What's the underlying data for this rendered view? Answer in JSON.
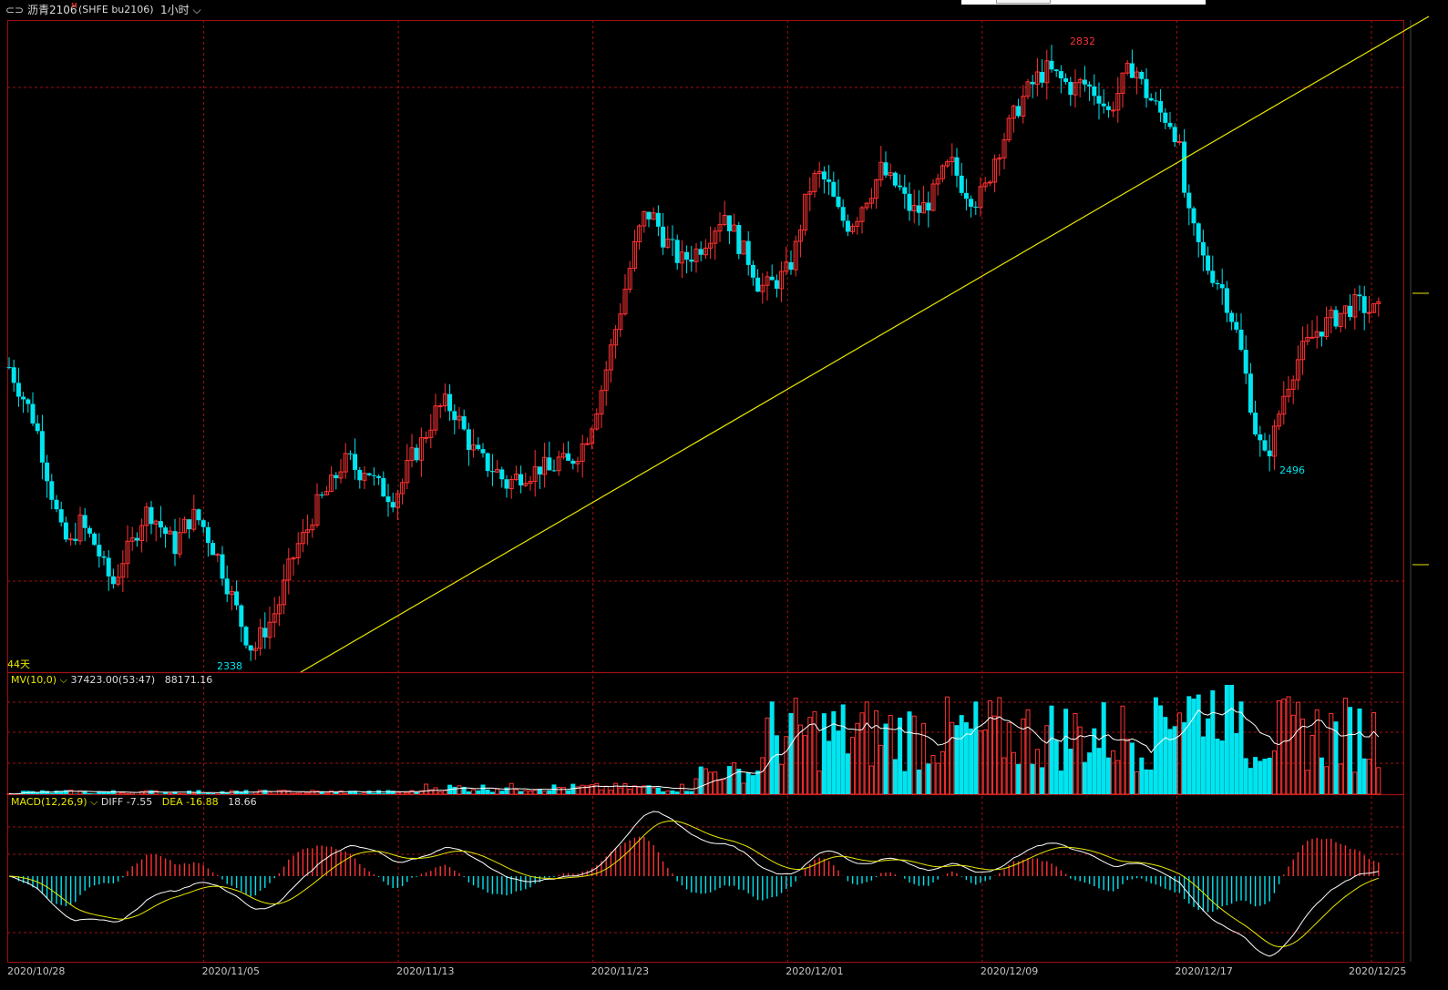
{
  "header": {
    "icon": "window-toggle-icon",
    "symbol_name": "沥青2106",
    "symbol_flag": "M",
    "symbol_code": "(SHFE bu2106)",
    "period": "1小时",
    "period_icon": "chevron-down-icon"
  },
  "main_panel": {
    "days_label": "44天",
    "high_label": "2832",
    "low_label": "2496",
    "early_low_label": "2338"
  },
  "volume_panel": {
    "indicator": "MV(10,0)",
    "value1": "37423.00(53:47)",
    "value2": "88171.16"
  },
  "macd_panel": {
    "indicator": "MACD(12,26,9)",
    "diff": "DIFF -7.55",
    "dea": "DEA -16.88",
    "macd": "18.66"
  },
  "x_axis_dates": [
    "2020/10/28",
    "2020/11/05",
    "2020/11/13",
    "2020/11/23",
    "2020/12/01",
    "2020/12/09",
    "2020/12/17",
    "2020/12/25"
  ],
  "colors": {
    "up": "#ff3232",
    "down": "#00e5f0",
    "trendline": "#e8e800",
    "grid": "#a01010",
    "ma_line": "#ffffff",
    "dea_line": "#e8e800",
    "label_yellow": "#e8e800",
    "label_white": "#dcdcdc"
  },
  "chart_data": [
    {
      "type": "candlestick",
      "title": "沥青2106 (SHFE bu2106) 1小时",
      "x_dates": [
        "2020/10/28",
        "2020/11/05",
        "2020/11/13",
        "2020/11/23",
        "2020/12/01",
        "2020/12/09",
        "2020/12/17",
        "2020/12/25"
      ],
      "annotated_points": [
        {
          "label": "2338",
          "value": 2338
        },
        {
          "label": "2832",
          "value": 2832
        },
        {
          "label": "2496",
          "value": 2496
        }
      ],
      "trendline": "rising from 11/13 low towards top-right",
      "price_path": [
        2575,
        2560,
        2545,
        2530,
        2500,
        2470,
        2440,
        2430,
        2450,
        2440,
        2430,
        2410,
        2400,
        2420,
        2430,
        2450,
        2460,
        2450,
        2440,
        2430,
        2445,
        2455,
        2450,
        2435,
        2420,
        2400,
        2380,
        2360,
        2345,
        2360,
        2370,
        2385,
        2410,
        2430,
        2440,
        2460,
        2470,
        2480,
        2495,
        2500,
        2490,
        2495,
        2480,
        2475,
        2470,
        2480,
        2500,
        2510,
        2525,
        2540,
        2545,
        2540,
        2525,
        2510,
        2500,
        2495,
        2490,
        2480,
        2485,
        2490,
        2490,
        2495,
        2490,
        2500,
        2495,
        2505,
        2515,
        2535,
        2560,
        2590,
        2620,
        2650,
        2680,
        2700,
        2695,
        2680,
        2670,
        2660,
        2665,
        2670,
        2680,
        2690,
        2700,
        2685,
        2670,
        2660,
        2640,
        2640,
        2645,
        2650,
        2665,
        2700,
        2725,
        2730,
        2720,
        2700,
        2690,
        2695,
        2710,
        2720,
        2735,
        2725,
        2720,
        2705,
        2700,
        2705,
        2715,
        2730,
        2740,
        2725,
        2715,
        2710,
        2720,
        2745,
        2760,
        2775,
        2790,
        2800,
        2810,
        2815,
        2810,
        2805,
        2800,
        2805,
        2800,
        2795,
        2780,
        2795,
        2810,
        2820,
        2800,
        2790,
        2780,
        2775,
        2760,
        2700,
        2680,
        2660,
        2650,
        2640,
        2620,
        2595,
        2560,
        2520,
        2500,
        2520,
        2550,
        2570,
        2585,
        2595,
        2605,
        2610,
        2615,
        2620,
        2625,
        2625,
        2620,
        2620
      ]
    },
    {
      "type": "bar",
      "title": "MV(10,0)",
      "series": [
        {
          "name": "MV(10,0)",
          "values": [
            37423.0,
            88171.16
          ]
        }
      ]
    },
    {
      "type": "bar",
      "title": "MACD(12,26,9)",
      "series": [
        {
          "name": "DIFF",
          "values": [
            -7.55
          ]
        },
        {
          "name": "DEA",
          "values": [
            -16.88
          ]
        },
        {
          "name": "MACD",
          "values": [
            18.66
          ]
        }
      ]
    }
  ]
}
